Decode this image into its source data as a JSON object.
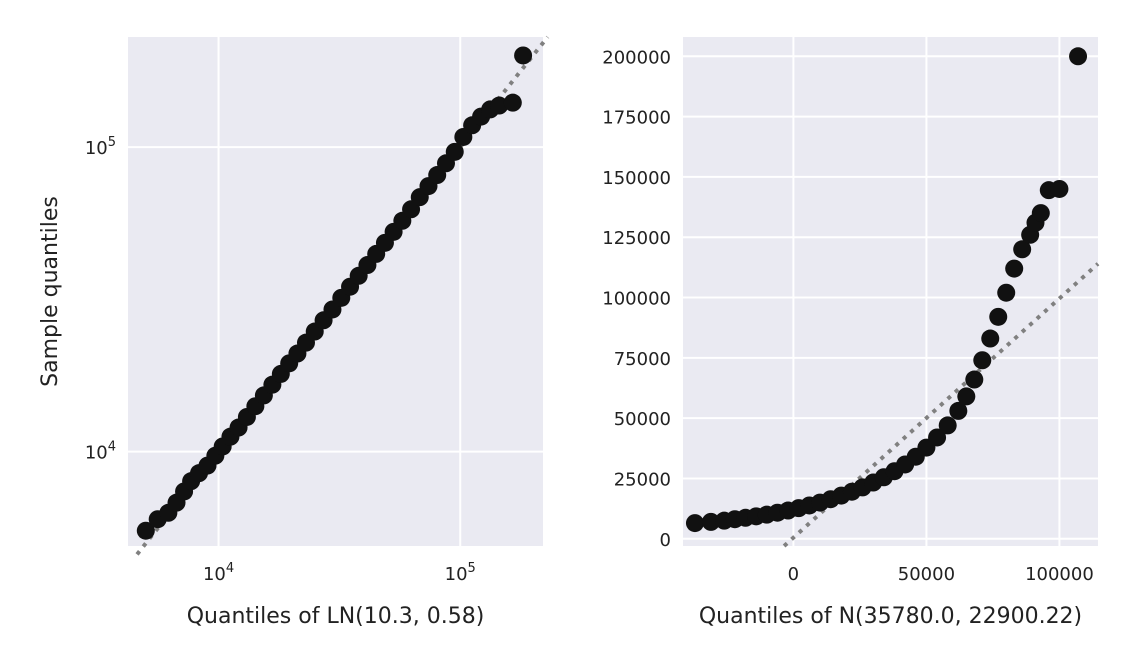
{
  "chart_data": [
    {
      "type": "scatter",
      "title": "",
      "xlabel": "Quantiles of LN(10.3, 0.58)",
      "ylabel": "Sample quantiles",
      "xscale": "log",
      "yscale": "log",
      "xlim": [
        4220,
        220000
      ],
      "ylim": [
        4900,
        230000
      ],
      "xticks": [
        {
          "value": 10000,
          "base": "10",
          "exp": "4"
        },
        {
          "value": 100000,
          "base": "10",
          "exp": "5"
        }
      ],
      "yticks": [
        {
          "value": 10000,
          "base": "10",
          "exp": "4"
        },
        {
          "value": 100000,
          "base": "10",
          "exp": "5"
        }
      ],
      "grid": true,
      "background": "#eaeaf2",
      "marker_color": "#111111",
      "reference_line": {
        "style": "dotted",
        "color": "#808080",
        "points": [
          [
            4600,
            4600
          ],
          [
            230000,
            230000
          ]
        ]
      },
      "points": [
        [
          5000,
          5500
        ],
        [
          5600,
          6000
        ],
        [
          6200,
          6300
        ],
        [
          6700,
          6800
        ],
        [
          7200,
          7400
        ],
        [
          7700,
          8000
        ],
        [
          8300,
          8500
        ],
        [
          9000,
          9000
        ],
        [
          9700,
          9700
        ],
        [
          10400,
          10400
        ],
        [
          11200,
          11200
        ],
        [
          12100,
          12000
        ],
        [
          13100,
          13000
        ],
        [
          14200,
          14100
        ],
        [
          15400,
          15300
        ],
        [
          16700,
          16600
        ],
        [
          18100,
          18000
        ],
        [
          19600,
          19500
        ],
        [
          21200,
          21000
        ],
        [
          23000,
          22800
        ],
        [
          25000,
          24800
        ],
        [
          27200,
          27000
        ],
        [
          29600,
          29300
        ],
        [
          32200,
          32000
        ],
        [
          35000,
          34800
        ],
        [
          38000,
          37800
        ],
        [
          41300,
          41000
        ],
        [
          44900,
          44600
        ],
        [
          48800,
          48500
        ],
        [
          53000,
          52700
        ],
        [
          57600,
          57300
        ],
        [
          62600,
          62500
        ],
        [
          68000,
          68500
        ],
        [
          73900,
          74500
        ],
        [
          80300,
          81000
        ],
        [
          87300,
          88500
        ],
        [
          94900,
          96500
        ],
        [
          103000,
          108000
        ],
        [
          112000,
          118000
        ],
        [
          122000,
          126000
        ],
        [
          133000,
          133000
        ],
        [
          145000,
          137000
        ],
        [
          165000,
          140000
        ],
        [
          182000,
          200000
        ]
      ]
    },
    {
      "type": "scatter",
      "title": "",
      "xlabel": "Quantiles of N(35780.0, 22900.22)",
      "ylabel": "",
      "xlim": [
        -41500,
        114500
      ],
      "ylim": [
        -3000,
        208000
      ],
      "xticks": [
        0,
        50000,
        100000
      ],
      "yticks": [
        0,
        25000,
        50000,
        75000,
        100000,
        125000,
        150000,
        175000,
        200000
      ],
      "grid": true,
      "background": "#eaeaf2",
      "marker_color": "#111111",
      "reference_line": {
        "style": "dotted",
        "color": "#808080",
        "points": [
          [
            -3500,
            -3000
          ],
          [
            114500,
            114000
          ]
        ]
      },
      "points": [
        [
          -37000,
          6500
        ],
        [
          -31000,
          7000
        ],
        [
          -26000,
          7500
        ],
        [
          -22000,
          8100
        ],
        [
          -18000,
          8700
        ],
        [
          -14000,
          9300
        ],
        [
          -10000,
          10000
        ],
        [
          -6000,
          10800
        ],
        [
          -2000,
          11700
        ],
        [
          2000,
          12700
        ],
        [
          6000,
          13800
        ],
        [
          10000,
          15000
        ],
        [
          14000,
          16400
        ],
        [
          18000,
          17900
        ],
        [
          22000,
          19500
        ],
        [
          26000,
          21300
        ],
        [
          30000,
          23300
        ],
        [
          34000,
          25500
        ],
        [
          38000,
          28000
        ],
        [
          42000,
          30800
        ],
        [
          46000,
          34000
        ],
        [
          50000,
          37800
        ],
        [
          54000,
          42000
        ],
        [
          58000,
          47000
        ],
        [
          62000,
          53000
        ],
        [
          65000,
          59000
        ],
        [
          68000,
          66000
        ],
        [
          71000,
          74000
        ],
        [
          74000,
          83000
        ],
        [
          77000,
          92000
        ],
        [
          80000,
          102000
        ],
        [
          83000,
          112000
        ],
        [
          86000,
          120000
        ],
        [
          89000,
          126000
        ],
        [
          91000,
          131000
        ],
        [
          93000,
          135000
        ],
        [
          96000,
          144500
        ],
        [
          100000,
          145000
        ],
        [
          107000,
          200000
        ]
      ]
    }
  ]
}
